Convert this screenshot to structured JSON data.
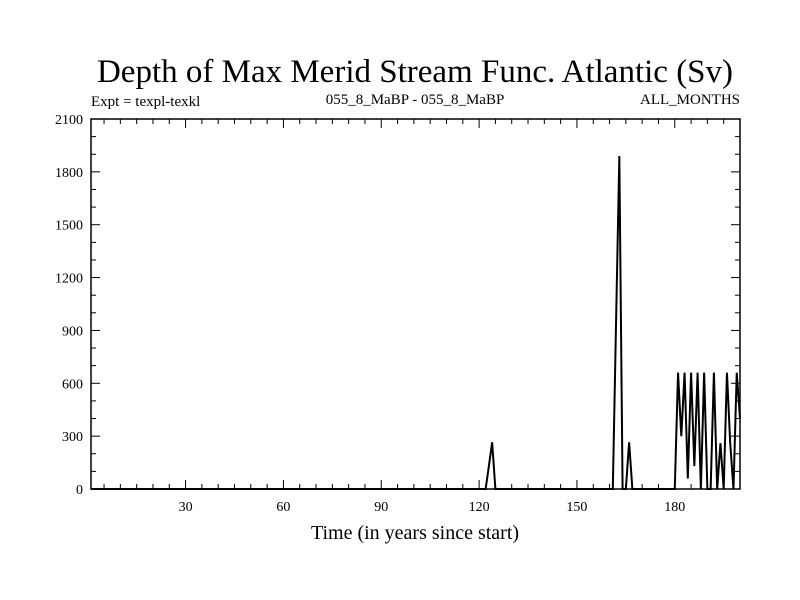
{
  "chart_data": {
    "type": "line",
    "title": "Depth of Max Merid Stream Func. Atlantic (Sv)",
    "subtitle_left": "Expt = texpl-texkl",
    "subtitle_center": "055_8_MaBP - 055_8_MaBP",
    "subtitle_right": "ALL_MONTHS",
    "xlabel": "Time (in years since start)",
    "ylabel": "",
    "xlim": [
      1,
      200
    ],
    "ylim": [
      0,
      2100
    ],
    "x_major_ticks": [
      30,
      60,
      90,
      120,
      150,
      180
    ],
    "x_minor_step": 5,
    "y_major_ticks": [
      0,
      300,
      600,
      900,
      1200,
      1500,
      1800,
      2100
    ],
    "y_minor_step": 100,
    "grid": false,
    "color": "#000000",
    "series": [
      {
        "x": [
          1,
          122,
          123,
          124,
          125,
          161,
          162,
          163,
          164,
          165,
          166,
          167,
          180,
          181,
          182,
          183,
          184,
          185,
          186,
          187,
          188,
          189,
          190,
          191,
          192,
          193,
          194,
          195,
          196,
          197,
          198,
          199,
          200
        ],
        "values": [
          0,
          0,
          130,
          265,
          0,
          0,
          950,
          1890,
          0,
          0,
          265,
          0,
          0,
          660,
          300,
          660,
          60,
          660,
          130,
          660,
          0,
          660,
          0,
          0,
          660,
          0,
          260,
          0,
          660,
          260,
          0,
          660,
          400
        ]
      }
    ]
  }
}
